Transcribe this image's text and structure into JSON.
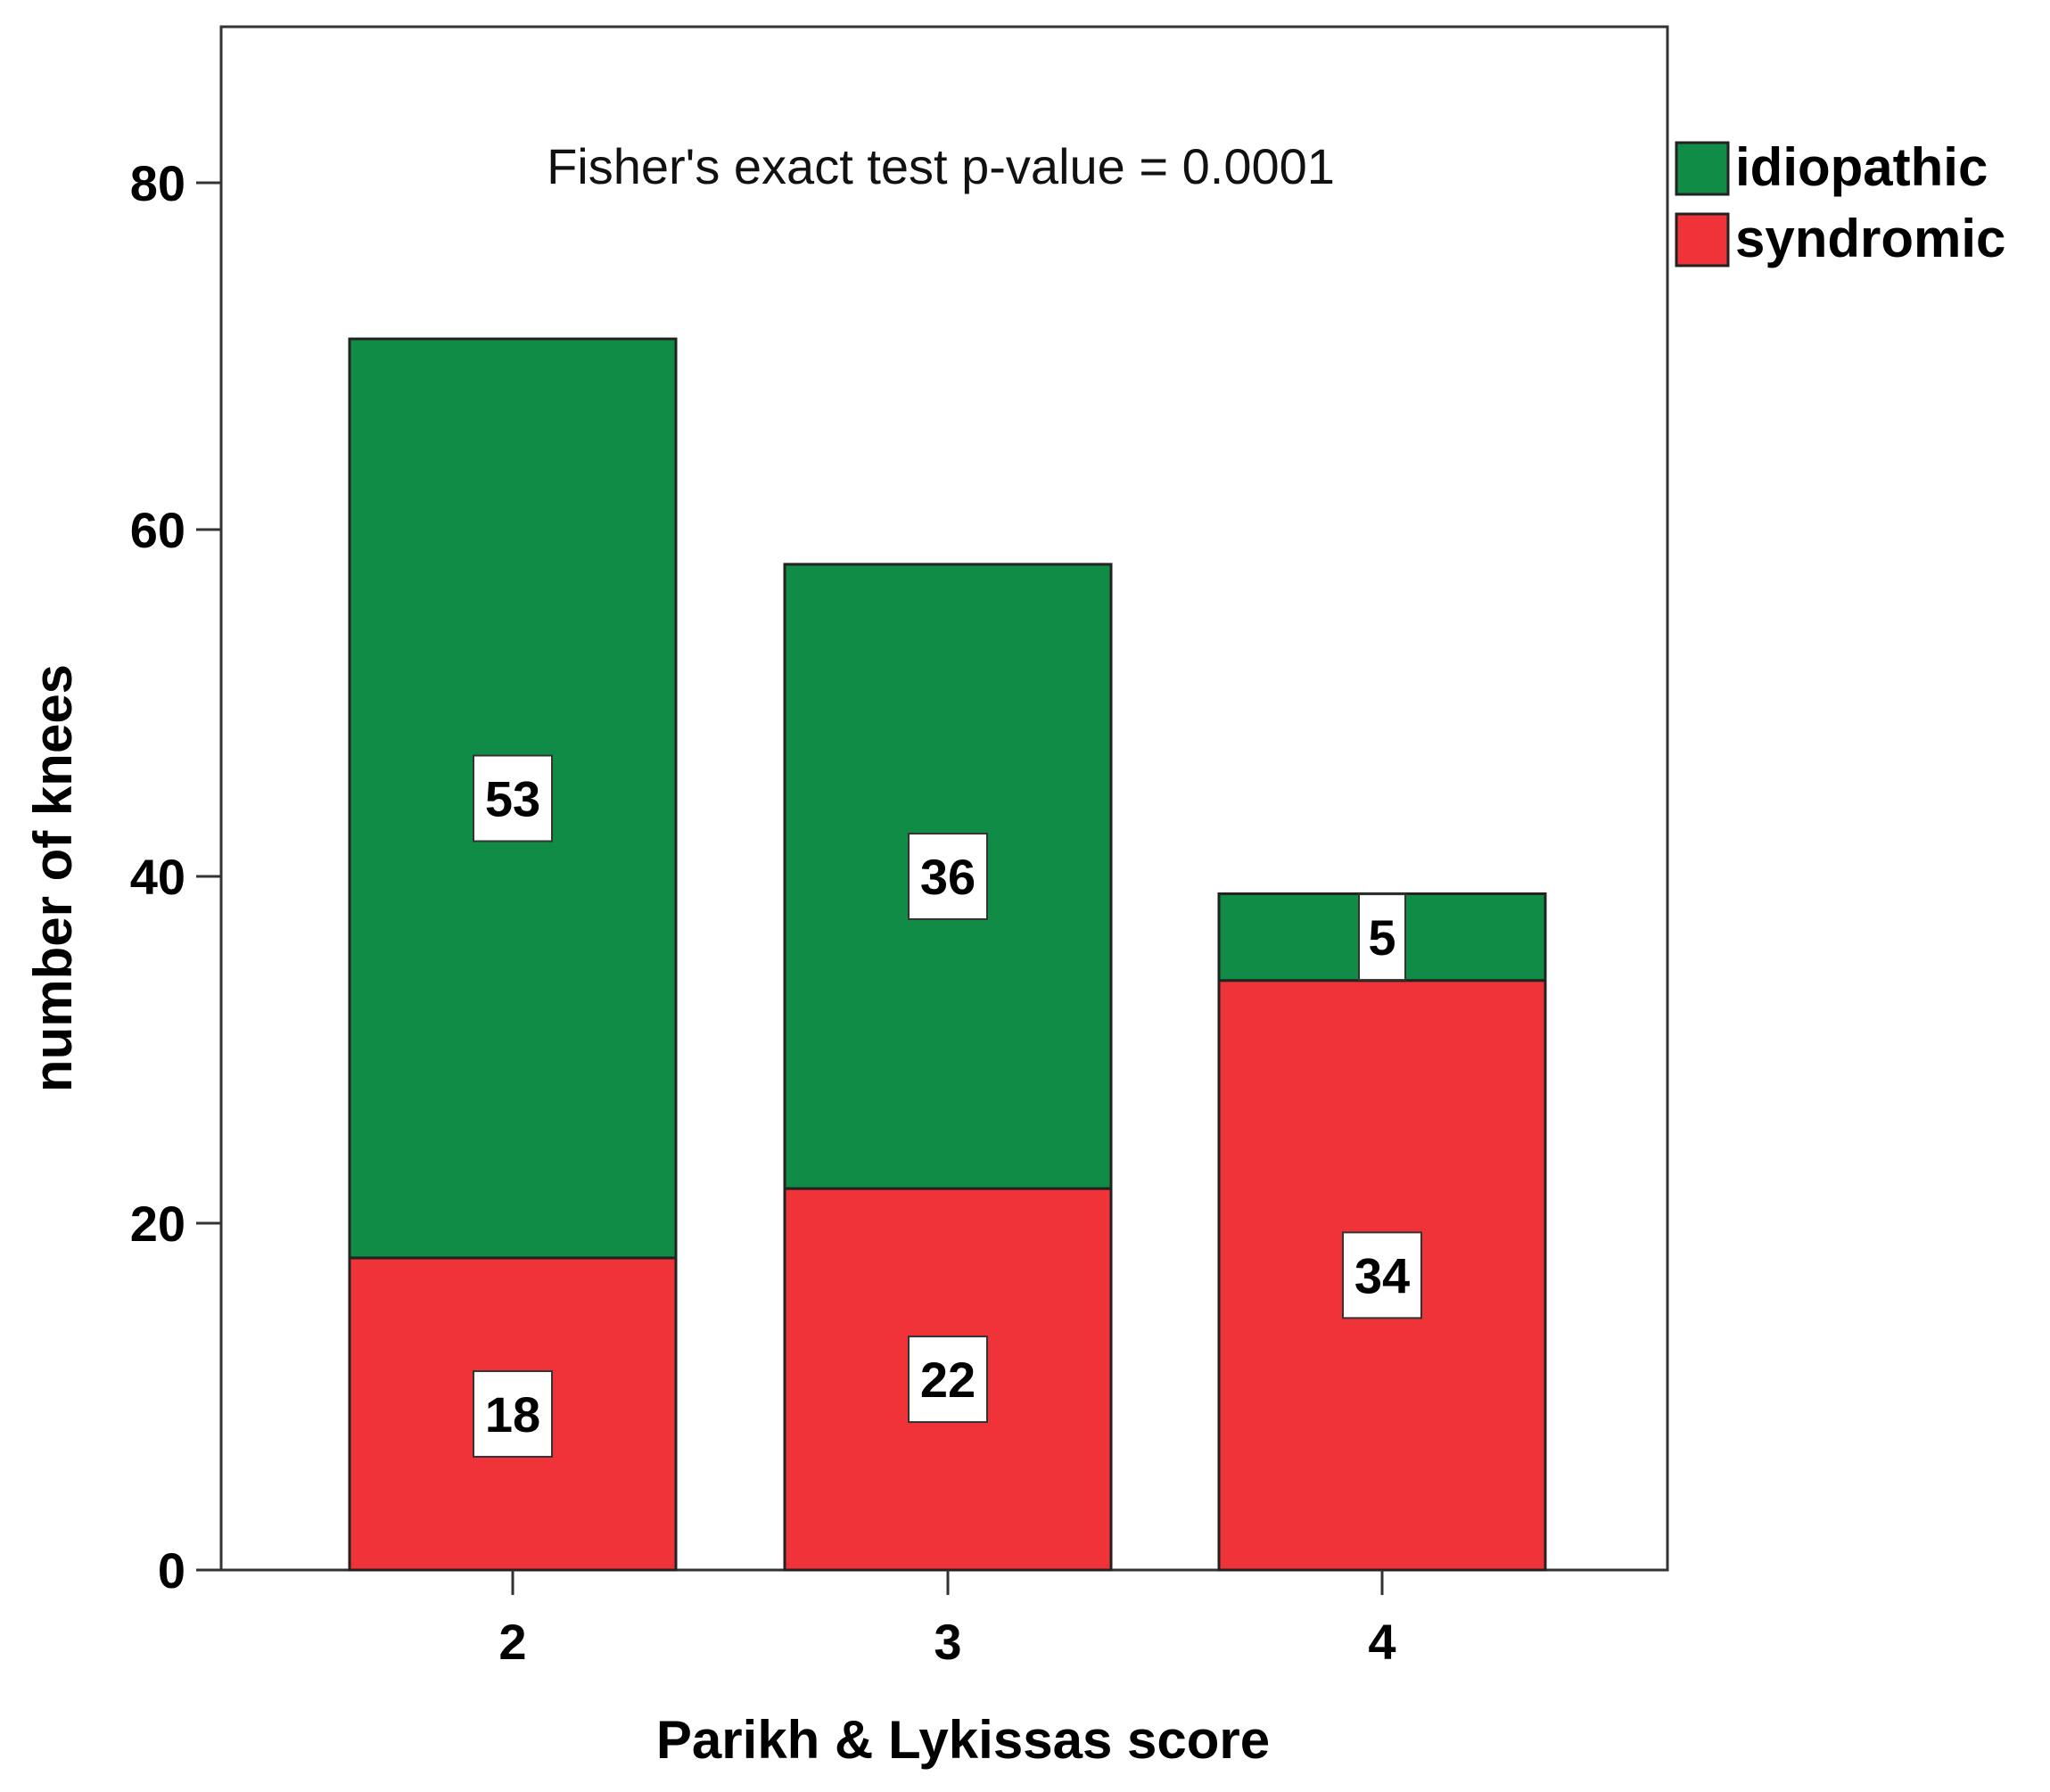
{
  "chart_data": {
    "type": "bar",
    "stacked": true,
    "categories": [
      "2",
      "3",
      "4"
    ],
    "series": [
      {
        "name": "syndromic",
        "values": [
          18,
          22,
          34
        ],
        "color": "#ef3338"
      },
      {
        "name": "idiopathic",
        "values": [
          53,
          36,
          5
        ],
        "color": "#118c47"
      }
    ],
    "title": "",
    "annotation": "Fisher's exact test p-value = 0.0001",
    "xlabel": "Parikh & Lykissas score",
    "ylabel": "number of knees",
    "ylim": [
      0,
      89
    ],
    "yticks": [
      0,
      20,
      40,
      60,
      80
    ],
    "legend": {
      "placement": "top-right outside",
      "entries": [
        {
          "label": "idiopathic",
          "color": "#118c47"
        },
        {
          "label": "syndromic",
          "color": "#ef3338"
        }
      ]
    },
    "grid": false
  }
}
